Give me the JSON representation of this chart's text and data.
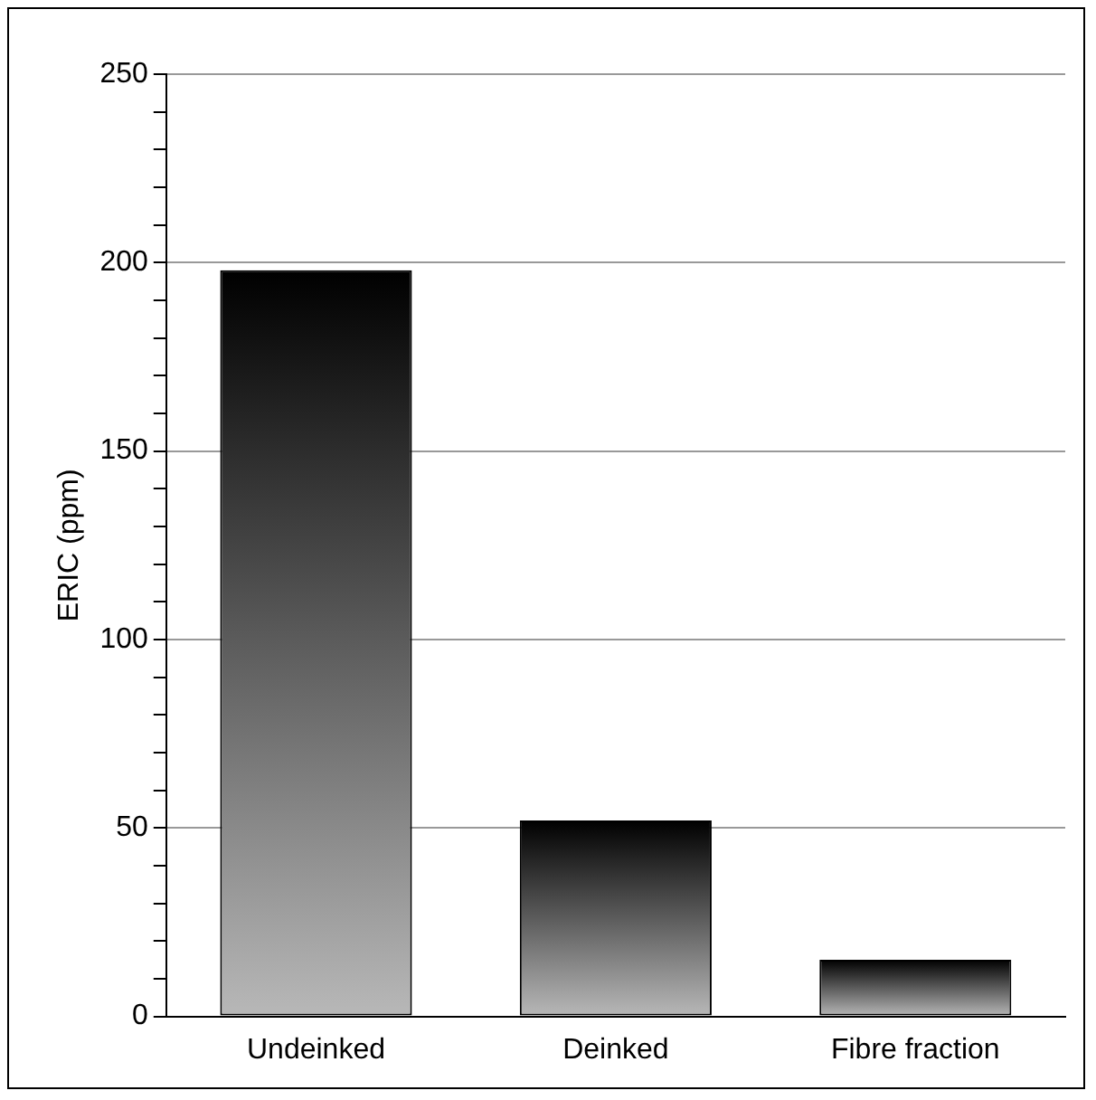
{
  "chart_data": {
    "type": "bar",
    "ylabel": "ERIC (ppm)",
    "categories": [
      "Undeinked",
      "Deinked",
      "Fibre fraction"
    ],
    "values": [
      198,
      52,
      15
    ],
    "color": "#b8b8b8",
    "ylim": [
      0,
      250
    ],
    "yticks": [
      0,
      {
        "value": 10,
        "label": null
      },
      {
        "value": 20,
        "label": null
      },
      {
        "value": 30,
        "label": null
      },
      {
        "value": 40,
        "label": null
      },
      50,
      {
        "value": 60,
        "label": null
      },
      {
        "value": 70,
        "label": null
      },
      {
        "value": 80,
        "label": null
      },
      {
        "value": 90,
        "label": null
      },
      100,
      {
        "value": 110,
        "label": null
      },
      {
        "value": 120,
        "label": null
      },
      {
        "value": 130,
        "label": null
      },
      {
        "value": 140,
        "label": null
      },
      150,
      {
        "value": 160,
        "label": null
      },
      {
        "value": 170,
        "label": null
      },
      {
        "value": 180,
        "label": null
      },
      {
        "value": 190,
        "label": null
      },
      200,
      {
        "value": 210,
        "label": null
      },
      {
        "value": 220,
        "label": null
      },
      {
        "value": 230,
        "label": null
      },
      {
        "value": 240,
        "label": null
      },
      250
    ],
    "grid": "y",
    "legend": false
  }
}
